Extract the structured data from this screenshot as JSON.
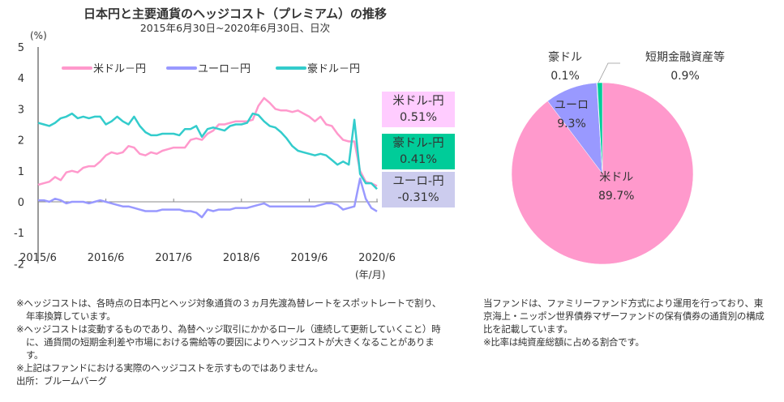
{
  "chart_data": [
    {
      "type": "line",
      "title": "日本円と主要通貨のヘッジコスト（プレミアム）の推移",
      "subtitle": "2015年6月30日~2020年6月30日、日次",
      "ylabel": "(%)",
      "xlabel": "(年/月)",
      "ylim": [
        -2,
        5
      ],
      "yticks": [
        "5",
        "4",
        "3",
        "2",
        "1",
        "0",
        "-1",
        "-2"
      ],
      "xticks": [
        "2015/6",
        "2016/6",
        "2017/6",
        "2018/6",
        "2019/6",
        "2020/6"
      ],
      "grid": false,
      "legend": "top",
      "x": [
        "2015/6",
        "2015/7",
        "2015/8",
        "2015/9",
        "2015/10",
        "2015/11",
        "2015/12",
        "2016/1",
        "2016/2",
        "2016/3",
        "2016/4",
        "2016/5",
        "2016/6",
        "2016/7",
        "2016/8",
        "2016/9",
        "2016/10",
        "2016/11",
        "2016/12",
        "2017/1",
        "2017/2",
        "2017/3",
        "2017/4",
        "2017/5",
        "2017/6",
        "2017/7",
        "2017/8",
        "2017/9",
        "2017/10",
        "2017/11",
        "2017/12",
        "2018/1",
        "2018/2",
        "2018/3",
        "2018/4",
        "2018/5",
        "2018/6",
        "2018/7",
        "2018/8",
        "2018/9",
        "2018/10",
        "2018/11",
        "2018/12",
        "2019/1",
        "2019/2",
        "2019/3",
        "2019/4",
        "2019/5",
        "2019/6",
        "2019/7",
        "2019/8",
        "2019/9",
        "2019/10",
        "2019/11",
        "2019/12",
        "2020/1",
        "2020/2",
        "2020/3",
        "2020/4",
        "2020/5",
        "2020/6"
      ],
      "series": [
        {
          "name": "米ドル－円",
          "color": "#ff99cc",
          "values": [
            0.55,
            0.6,
            0.65,
            0.8,
            0.7,
            0.95,
            1.0,
            0.95,
            1.1,
            1.15,
            1.15,
            1.3,
            1.5,
            1.6,
            1.55,
            1.6,
            1.8,
            1.75,
            1.55,
            1.5,
            1.6,
            1.55,
            1.65,
            1.7,
            1.75,
            1.75,
            1.75,
            2.0,
            2.05,
            2.0,
            2.2,
            2.3,
            2.5,
            2.5,
            2.55,
            2.6,
            2.6,
            2.6,
            2.65,
            3.1,
            3.35,
            3.2,
            3.0,
            2.95,
            2.95,
            2.9,
            2.95,
            2.85,
            2.75,
            2.6,
            2.75,
            2.5,
            2.45,
            2.2,
            2.0,
            1.95,
            1.95,
            1.0,
            0.65,
            0.6,
            0.51
          ]
        },
        {
          "name": "ユーロ－円",
          "color": "#9999ff",
          "values": [
            0.05,
            0.05,
            0.0,
            0.1,
            0.05,
            -0.05,
            0.0,
            0.0,
            0.0,
            -0.05,
            0.0,
            0.05,
            0.0,
            -0.05,
            -0.1,
            -0.15,
            -0.15,
            -0.2,
            -0.25,
            -0.3,
            -0.3,
            -0.3,
            -0.25,
            -0.25,
            -0.25,
            -0.25,
            -0.3,
            -0.3,
            -0.35,
            -0.5,
            -0.25,
            -0.3,
            -0.25,
            -0.25,
            -0.25,
            -0.2,
            -0.2,
            -0.2,
            -0.15,
            -0.1,
            -0.05,
            -0.15,
            -0.15,
            -0.15,
            -0.15,
            -0.15,
            -0.15,
            -0.15,
            -0.15,
            -0.15,
            -0.1,
            -0.05,
            -0.05,
            -0.1,
            -0.25,
            -0.2,
            -0.15,
            0.75,
            0.1,
            -0.2,
            -0.31
          ]
        },
        {
          "name": "豪ドル－円",
          "color": "#33cccc",
          "values": [
            2.55,
            2.5,
            2.45,
            2.55,
            2.7,
            2.75,
            2.85,
            2.7,
            2.75,
            2.7,
            2.75,
            2.75,
            2.5,
            2.6,
            2.75,
            2.6,
            2.5,
            2.75,
            2.45,
            2.25,
            2.15,
            2.15,
            2.2,
            2.2,
            2.2,
            2.15,
            2.35,
            2.35,
            2.45,
            2.1,
            2.35,
            2.4,
            2.35,
            2.3,
            2.45,
            2.5,
            2.5,
            2.55,
            2.85,
            2.8,
            2.6,
            2.45,
            2.4,
            2.25,
            2.05,
            1.8,
            1.65,
            1.6,
            1.55,
            1.5,
            1.55,
            1.5,
            1.35,
            1.2,
            1.3,
            1.2,
            2.65,
            0.9,
            0.6,
            0.6,
            0.41
          ]
        }
      ],
      "end_labels": [
        {
          "label": "米ドル-円",
          "value": "0.51%",
          "bg": "#ffccff"
        },
        {
          "label": "豪ドル-円",
          "value": "0.41%",
          "bg": "#00cc99"
        },
        {
          "label": "ユーロ-円",
          "value": "-0.31%",
          "bg": "#ccccee"
        }
      ]
    },
    {
      "type": "pie",
      "slices": [
        {
          "label": "米ドル",
          "value": 89.7,
          "text": "89.7%",
          "color": "#ff99cc"
        },
        {
          "label": "ユーロ",
          "value": 9.3,
          "text": "9.3%",
          "color": "#9999ff"
        },
        {
          "label": "豪ドル",
          "value": 0.1,
          "text": "0.1%",
          "color": "#33cccc"
        },
        {
          "label": "短期金融資産等",
          "value": 0.9,
          "text": "0.9%",
          "color": "#00cc99"
        }
      ]
    }
  ],
  "notes_left": [
    "※ヘッジコストは、各時点の日本円とヘッジ対象通貨の３ヵ月先渡為替レートをスポットレートで割り、年率換算しています。",
    "※ヘッジコストは変動するものであり、為替ヘッジ取引にかかるロール（連続して更新していくこと）時に、通貨間の短期金利差や市場における需給等の要因によりヘッジコストが大きくなることがあります。",
    "※上記はファンドにおける実際のヘッジコストを示すものではありません。",
    "出所：ブルームバーグ"
  ],
  "notes_right": [
    "当ファンドは、ファミリーファンド方式により運用を行っており、東京海上・ニッポン世界債券マザーファンドの保有債券の通貨別の構成比を記載しています。",
    "※比率は純資産総額に占める割合です。"
  ]
}
